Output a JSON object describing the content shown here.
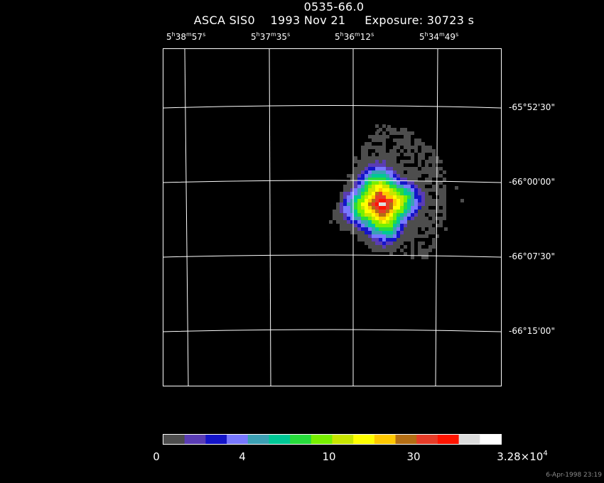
{
  "header": {
    "object_name": "0535-66.0",
    "subtitle": "ASCA SIS0    1993 Nov 21     Exposure: 30723 s"
  },
  "ra_axis": {
    "labels": [
      {
        "h": "5",
        "hu": "h",
        "m": "38",
        "mu": "m",
        "s": "57",
        "su": "s"
      },
      {
        "h": "5",
        "hu": "h",
        "m": "37",
        "mu": "m",
        "s": "35",
        "su": "s"
      },
      {
        "h": "5",
        "hu": "h",
        "m": "36",
        "mu": "m",
        "s": "12",
        "su": "s"
      },
      {
        "h": "5",
        "hu": "h",
        "m": "34",
        "mu": "m",
        "s": "49",
        "su": "s"
      }
    ]
  },
  "dec_axis": {
    "labels": [
      "-65°52'30\"",
      "-66°00'00\"",
      "-66°07'30\"",
      "-66°15'00\""
    ]
  },
  "colorbar": {
    "tick_labels": [
      "0",
      "4",
      "10",
      "30"
    ],
    "max_label_base": "3.28×10",
    "max_label_exp": "4",
    "colors": [
      "#4d4d4d",
      "#5a3cb4",
      "#1414c8",
      "#7878ff",
      "#3ca0b4",
      "#00c896",
      "#28dc3c",
      "#78f000",
      "#c8e600",
      "#ffff00",
      "#ffc800",
      "#b46e14",
      "#e63c28",
      "#ff1400",
      "#dcdcdc",
      "#ffffff"
    ]
  },
  "footer": {
    "timestamp": "6-Apr-1998 23:19"
  }
}
